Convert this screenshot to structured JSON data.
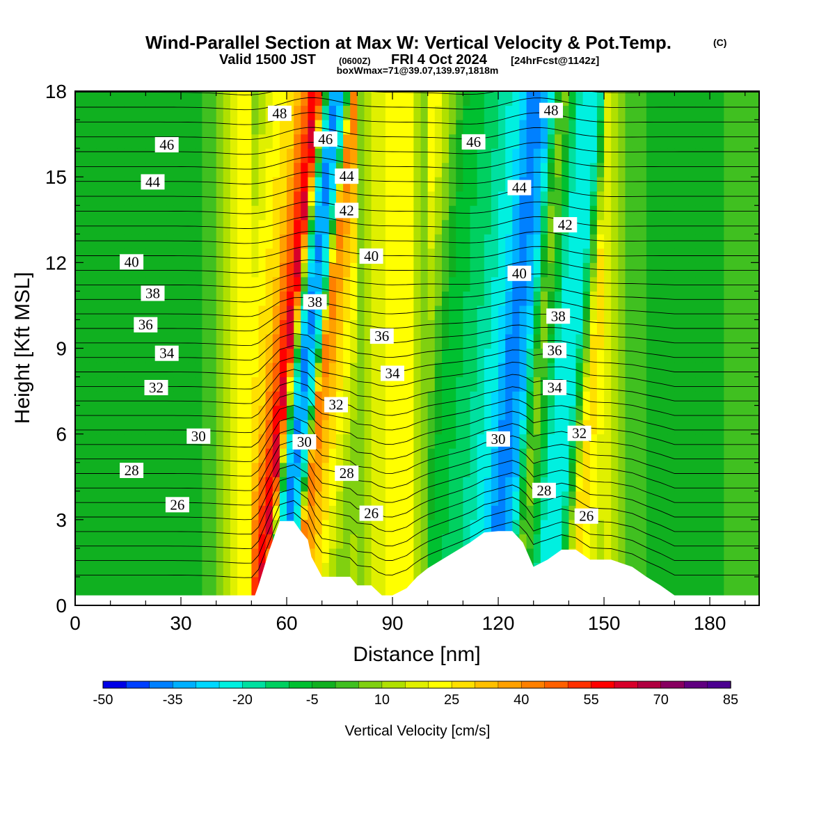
{
  "title": "Wind-Parallel Section at Max W: Vertical Velocity & Pot.Temp.",
  "copyright": "(C)",
  "valid_line": {
    "prefix": "Valid 1500 JST",
    "zulu": "(0600Z)",
    "date": "FRI 4 Oct 2024",
    "forecast": "[24hrFcst@1142z]"
  },
  "boxwmax": "boxWmax=71@39.07,139.97,1818m",
  "chart_data": {
    "type": "heatmap",
    "xlabel": "Distance [nm]",
    "ylabel": "Height [Kft MSL]",
    "xlim": [
      0,
      194
    ],
    "ylim": [
      0,
      18
    ],
    "x_ticks": [
      0,
      30,
      60,
      90,
      120,
      150,
      180
    ],
    "y_ticks": [
      0,
      3,
      6,
      9,
      12,
      15,
      18
    ],
    "colorbar": {
      "label": "Vertical Velocity [cm/s]",
      "tick_labels": [
        "-50",
        "-35",
        "-20",
        "-5",
        "10",
        "25",
        "40",
        "55",
        "70",
        "85"
      ],
      "range": [
        -50,
        85
      ],
      "step": 5,
      "colors": [
        "#0000e6",
        "#0040ff",
        "#0080ff",
        "#00b0ff",
        "#00d8ff",
        "#00f0e0",
        "#00e0a0",
        "#00d060",
        "#00c030",
        "#10b020",
        "#40c020",
        "#80d010",
        "#b0e000",
        "#e0f000",
        "#ffff00",
        "#ffe000",
        "#ffc000",
        "#ffa000",
        "#ff8000",
        "#ff6000",
        "#ff3000",
        "#ff0000",
        "#d8002a",
        "#b00040",
        "#880060",
        "#600080",
        "#4b0090"
      ]
    },
    "vertical_velocity_field": [
      {
        "x": 5,
        "w": -2
      },
      {
        "x": 15,
        "w": -3
      },
      {
        "x": 25,
        "w": -2
      },
      {
        "x": 35,
        "w": -4
      },
      {
        "x": 45,
        "w": 18
      },
      {
        "x": 52,
        "w": 30
      },
      {
        "x": 58,
        "w": 65
      },
      {
        "x": 61,
        "w": -20
      },
      {
        "x": 63,
        "w": -40
      },
      {
        "x": 66,
        "w": -20
      },
      {
        "x": 68,
        "w": 45
      },
      {
        "x": 72,
        "w": 30
      },
      {
        "x": 80,
        "w": 5
      },
      {
        "x": 88,
        "w": 22
      },
      {
        "x": 95,
        "w": 20
      },
      {
        "x": 103,
        "w": -5
      },
      {
        "x": 112,
        "w": -15
      },
      {
        "x": 118,
        "w": -25
      },
      {
        "x": 122,
        "w": -40
      },
      {
        "x": 126,
        "w": -30
      },
      {
        "x": 130,
        "w": 10
      },
      {
        "x": 135,
        "w": -20
      },
      {
        "x": 140,
        "w": -25
      },
      {
        "x": 145,
        "w": 30
      },
      {
        "x": 155,
        "w": 5
      },
      {
        "x": 165,
        "w": -2
      },
      {
        "x": 175,
        "w": -3
      },
      {
        "x": 185,
        "w": 0
      }
    ],
    "potential_temperature_labels": [
      {
        "text": "46",
        "x": 26,
        "y": 16.1
      },
      {
        "text": "44",
        "x": 22,
        "y": 14.8
      },
      {
        "text": "40",
        "x": 16,
        "y": 12.0
      },
      {
        "text": "38",
        "x": 22,
        "y": 10.9
      },
      {
        "text": "36",
        "x": 20,
        "y": 9.8
      },
      {
        "text": "34",
        "x": 26,
        "y": 8.8
      },
      {
        "text": "32",
        "x": 23,
        "y": 7.6
      },
      {
        "text": "30",
        "x": 35,
        "y": 5.9
      },
      {
        "text": "28",
        "x": 16,
        "y": 4.7
      },
      {
        "text": "26",
        "x": 29,
        "y": 3.5
      },
      {
        "text": "48",
        "x": 58,
        "y": 17.2
      },
      {
        "text": "46",
        "x": 71,
        "y": 16.3
      },
      {
        "text": "44",
        "x": 77,
        "y": 15.0
      },
      {
        "text": "42",
        "x": 77,
        "y": 13.8
      },
      {
        "text": "40",
        "x": 84,
        "y": 12.2
      },
      {
        "text": "38",
        "x": 68,
        "y": 10.6
      },
      {
        "text": "36",
        "x": 87,
        "y": 9.4
      },
      {
        "text": "34",
        "x": 90,
        "y": 8.1
      },
      {
        "text": "32",
        "x": 74,
        "y": 7.0
      },
      {
        "text": "30",
        "x": 65,
        "y": 5.7
      },
      {
        "text": "28",
        "x": 77,
        "y": 4.6
      },
      {
        "text": "26",
        "x": 84,
        "y": 3.2
      },
      {
        "text": "46",
        "x": 113,
        "y": 16.2
      },
      {
        "text": "48",
        "x": 135,
        "y": 17.3
      },
      {
        "text": "44",
        "x": 126,
        "y": 14.6
      },
      {
        "text": "42",
        "x": 139,
        "y": 13.3
      },
      {
        "text": "40",
        "x": 126,
        "y": 11.6
      },
      {
        "text": "38",
        "x": 137,
        "y": 10.1
      },
      {
        "text": "36",
        "x": 136,
        "y": 8.9
      },
      {
        "text": "34",
        "x": 136,
        "y": 7.6
      },
      {
        "text": "32",
        "x": 143,
        "y": 6.0
      },
      {
        "text": "30",
        "x": 120,
        "y": 5.8
      },
      {
        "text": "28",
        "x": 133,
        "y": 4.0
      },
      {
        "text": "26",
        "x": 145,
        "y": 3.1
      }
    ],
    "terrain_profile": [
      [
        0,
        0.35
      ],
      [
        10,
        0.35
      ],
      [
        20,
        0.35
      ],
      [
        30,
        0.35
      ],
      [
        40,
        0.35
      ],
      [
        51,
        0.35
      ],
      [
        52,
        0.7
      ],
      [
        55,
        1.9
      ],
      [
        58,
        2.95
      ],
      [
        60,
        2.95
      ],
      [
        62,
        2.95
      ],
      [
        64,
        2.6
      ],
      [
        66,
        2.3
      ],
      [
        67,
        1.7
      ],
      [
        70,
        1.0
      ],
      [
        74,
        1.0
      ],
      [
        78,
        1.0
      ],
      [
        80,
        0.7
      ],
      [
        84,
        0.7
      ],
      [
        87,
        0.35
      ],
      [
        90,
        0.35
      ],
      [
        94,
        0.6
      ],
      [
        97,
        1.0
      ],
      [
        100,
        1.3
      ],
      [
        104,
        1.6
      ],
      [
        108,
        1.9
      ],
      [
        112,
        2.2
      ],
      [
        116,
        2.55
      ],
      [
        120,
        2.6
      ],
      [
        124,
        2.6
      ],
      [
        127,
        2.2
      ],
      [
        130,
        1.35
      ],
      [
        134,
        1.6
      ],
      [
        138,
        1.95
      ],
      [
        142,
        1.95
      ],
      [
        146,
        1.6
      ],
      [
        152,
        1.6
      ],
      [
        158,
        1.35
      ],
      [
        162,
        1.0
      ],
      [
        166,
        0.7
      ],
      [
        170,
        0.35
      ],
      [
        180,
        0.35
      ],
      [
        194,
        0.35
      ]
    ]
  }
}
